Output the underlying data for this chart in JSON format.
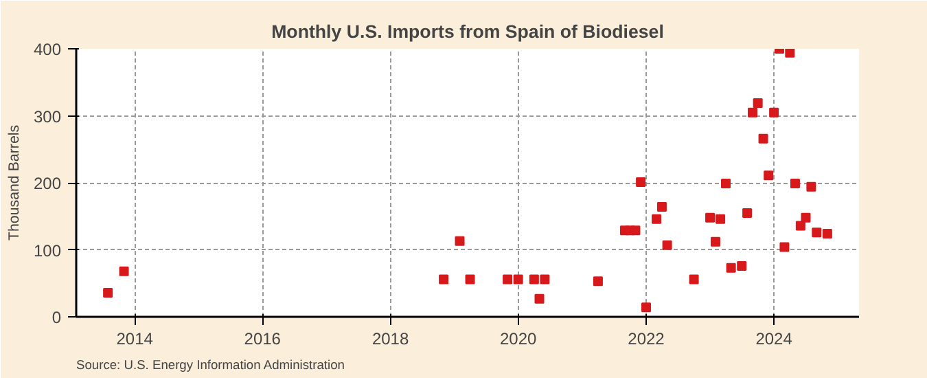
{
  "chart_data": {
    "type": "scatter",
    "title": "Monthly U.S. Imports from Spain of Biodiesel",
    "ylabel": "Thousand Barrels",
    "annotations": [
      "Source: U.S. Energy Information Administration"
    ],
    "x": [
      "2013-08",
      "2013-11",
      "2018-11",
      "2019-02",
      "2019-04",
      "2019-11",
      "2020-01",
      "2020-04",
      "2020-05",
      "2020-06",
      "2021-04",
      "2021-09",
      "2021-10",
      "2021-11",
      "2021-12",
      "2022-01",
      "2022-03",
      "2022-04",
      "2022-05",
      "2022-10",
      "2023-01",
      "2023-02",
      "2023-03",
      "2023-04",
      "2023-05",
      "2023-07",
      "2023-08",
      "2023-09",
      "2023-10",
      "2023-11",
      "2023-12",
      "2024-01",
      "2024-02",
      "2024-03",
      "2024-04",
      "2024-05",
      "2024-06",
      "2024-07",
      "2024-08",
      "2024-09",
      "2024-11"
    ],
    "series": [
      {
        "color": "#d7191c",
        "values": [
          36,
          68,
          56,
          113,
          56,
          56,
          56,
          56,
          27,
          56,
          53,
          129,
          129,
          129,
          201,
          14,
          146,
          164,
          107,
          56,
          148,
          112,
          146,
          199,
          73,
          76,
          155,
          305,
          319,
          266,
          211,
          305,
          400,
          104,
          394,
          199,
          136,
          148,
          194,
          126,
          124
        ]
      }
    ],
    "xlim": [
      "2013-02",
      "2025-05"
    ],
    "xticks": [
      "2014",
      "2016",
      "2018",
      "2020",
      "2022",
      "2024"
    ],
    "ylim": [
      0,
      400
    ],
    "yticks": [
      0,
      100,
      200,
      300,
      400
    ],
    "grid": true,
    "marker": "square"
  }
}
